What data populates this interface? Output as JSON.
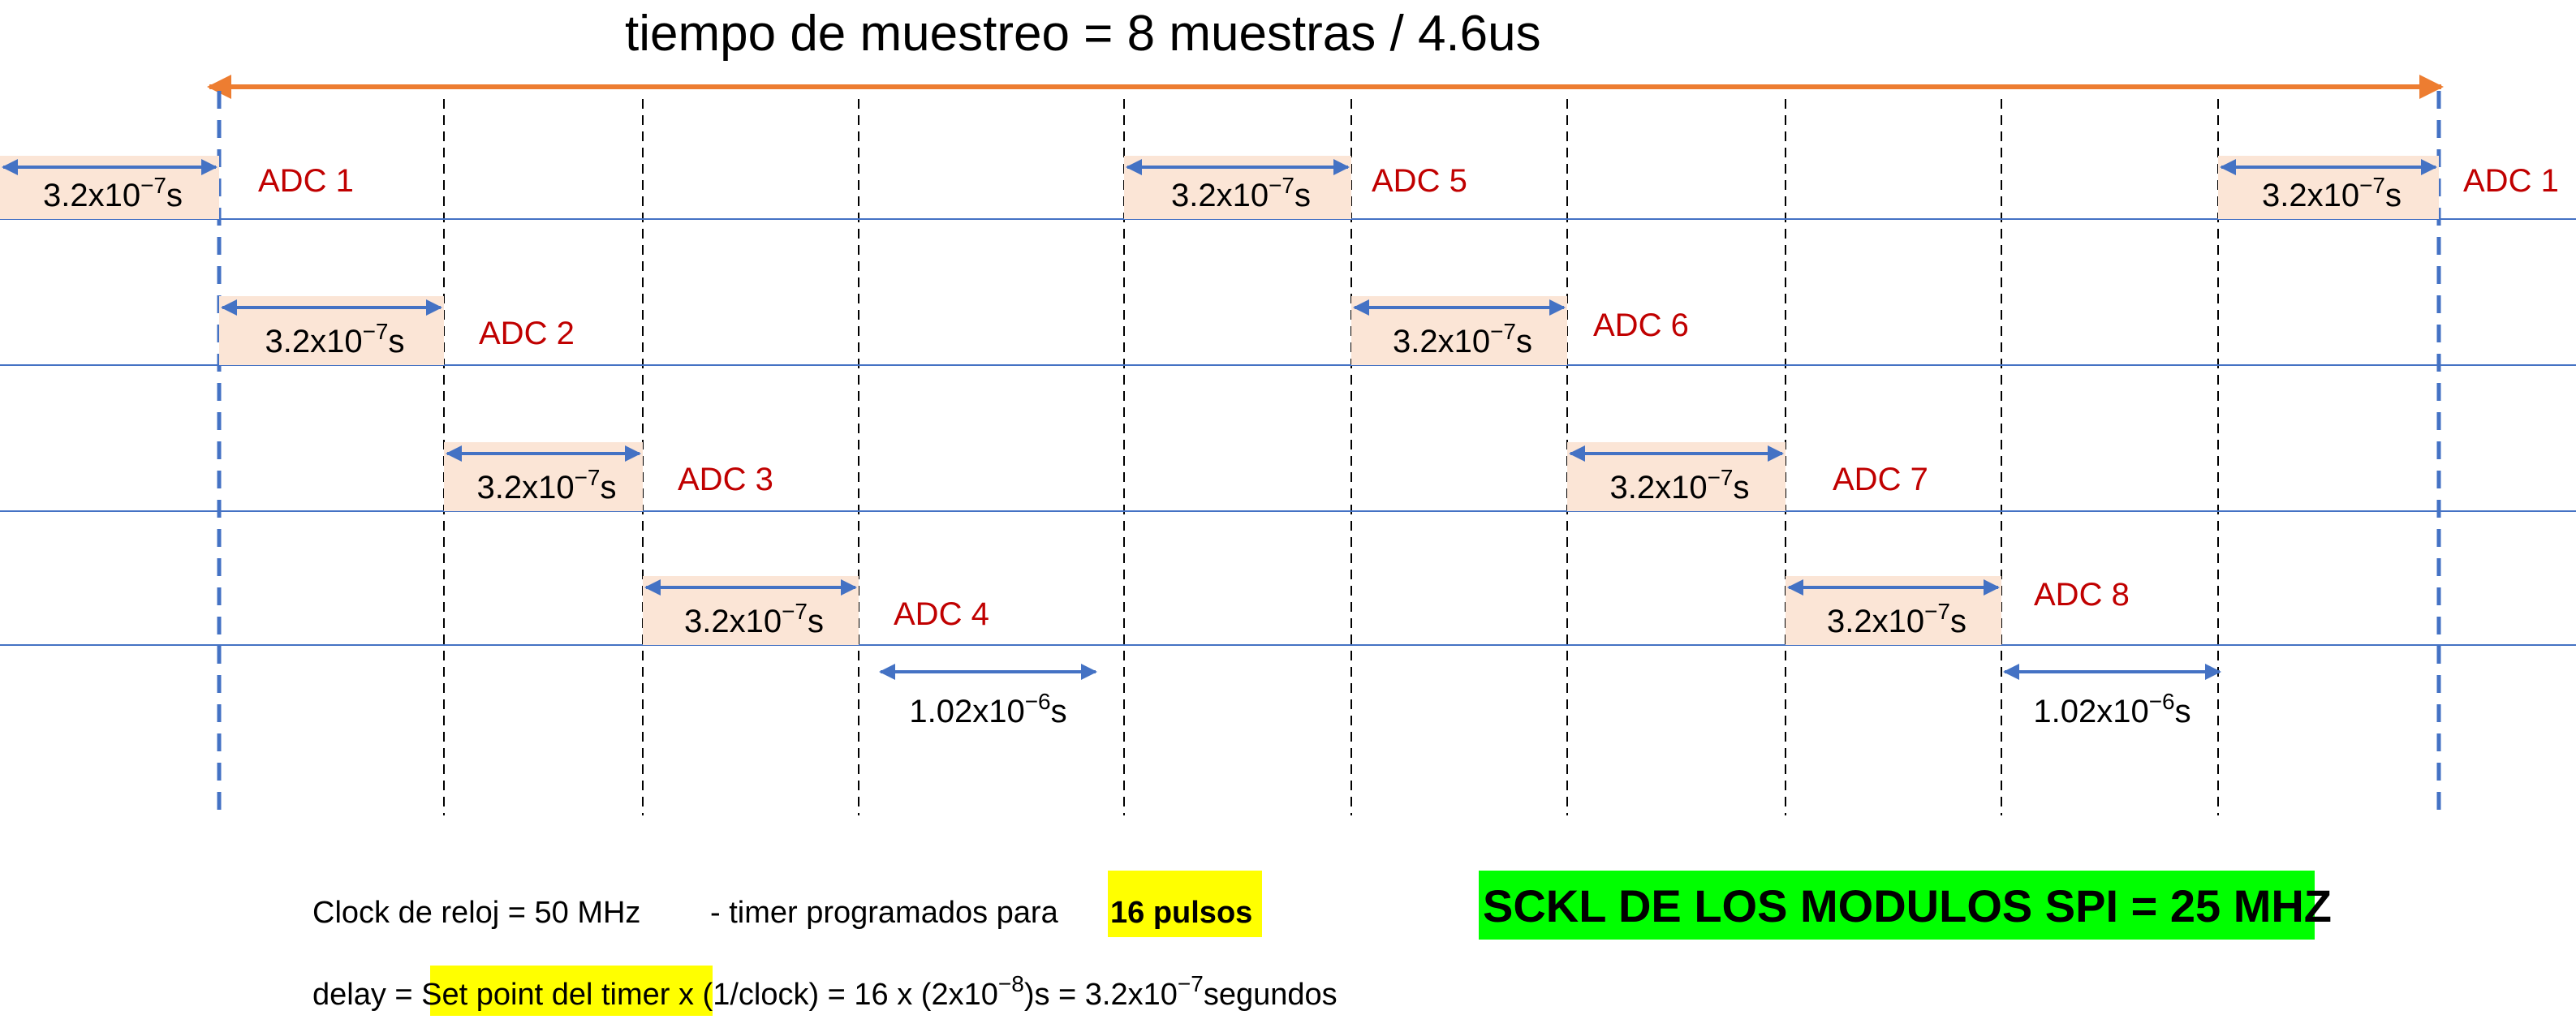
{
  "title": "tiempo de muestreo = 8 muestras / 4.6us",
  "colors": {
    "span_arrow": "#ed7d31",
    "arrow": "#4472c4",
    "line": "#4472c4",
    "boundary": "#4472c4",
    "grid": "#000000",
    "box_fill": "#fbe5d6",
    "adc_label": "#c00000",
    "highlight_yellow": "#ffff00",
    "highlight_green": "#00ff00"
  },
  "duration_label": {
    "base": "3.2x10",
    "exp": "−7",
    "unit": "s"
  },
  "gap_label": {
    "base": "1.02x10",
    "exp": "−6",
    "unit": "s"
  },
  "adc_labels": [
    "ADC 1",
    "ADC 2",
    "ADC 3",
    "ADC 4",
    "ADC 5",
    "ADC 6",
    "ADC 7",
    "ADC 8",
    "ADC 1"
  ],
  "notes": {
    "clock_text": "Clock de reloj = 50 MHz",
    "timer_text": "- timer programados para",
    "timer_pulses": "16  pulsos",
    "delay_prefix": "delay =",
    "delay_setpoint": "Set point del timer",
    "delay_middle": "x (1/clock) = 16 x (2x10",
    "delay_exp1": "−8",
    "delay_mid2": ")s = 3.2x10",
    "delay_exp2": "−7",
    "delay_suffix": "segundos",
    "spi": "SCKL DE LOS MODULOS SPI = 25 MHZ"
  }
}
